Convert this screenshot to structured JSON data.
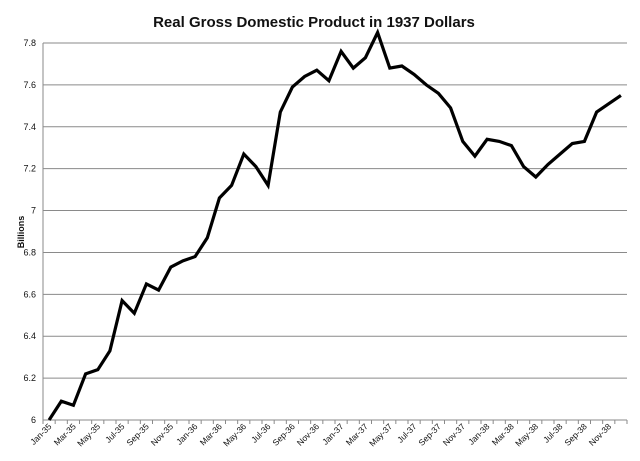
{
  "chart_data": {
    "type": "line",
    "title": "Real Gross Domestic Product in 1937 Dollars",
    "xlabel": "",
    "ylabel": "Billions",
    "ylim": [
      6,
      7.8
    ],
    "yticks": [
      "6",
      "6.2",
      "6.4",
      "6.6",
      "6.8",
      "7",
      "7.2",
      "7.4",
      "7.6",
      "7.8"
    ],
    "x_tick_labels": [
      "Jan-35",
      "Mar-35",
      "May-35",
      "Jul-35",
      "Sep-35",
      "Nov-35",
      "Jan-36",
      "Mar-36",
      "May-36",
      "Jul-36",
      "Sep-36",
      "Nov-36",
      "Jan-37",
      "Mar-37",
      "May-37",
      "Jul-37",
      "Sep-37",
      "Nov-37",
      "Jan-38",
      "Mar-38",
      "May-38",
      "Jul-38",
      "Sep-38",
      "Nov-38"
    ],
    "x": [
      "Jan-35",
      "Feb-35",
      "Mar-35",
      "Apr-35",
      "May-35",
      "Jun-35",
      "Jul-35",
      "Aug-35",
      "Sep-35",
      "Oct-35",
      "Nov-35",
      "Dec-35",
      "Jan-36",
      "Feb-36",
      "Mar-36",
      "Apr-36",
      "May-36",
      "Jun-36",
      "Jul-36",
      "Aug-36",
      "Sep-36",
      "Oct-36",
      "Nov-36",
      "Dec-36",
      "Jan-37",
      "Feb-37",
      "Mar-37",
      "Apr-37",
      "May-37",
      "Jun-37",
      "Jul-37",
      "Aug-37",
      "Sep-37",
      "Oct-37",
      "Nov-37",
      "Dec-37",
      "Jan-38",
      "Feb-38",
      "Mar-38",
      "Apr-38",
      "May-38",
      "Jun-38",
      "Jul-38",
      "Aug-38",
      "Sep-38",
      "Oct-38",
      "Nov-38",
      "Dec-38"
    ],
    "series": [
      {
        "values": [
          6.0,
          6.09,
          6.07,
          6.22,
          6.24,
          6.33,
          6.57,
          6.51,
          6.65,
          6.62,
          6.73,
          6.76,
          6.78,
          6.87,
          7.06,
          7.12,
          7.27,
          7.21,
          7.12,
          7.47,
          7.59,
          7.64,
          7.67,
          7.62,
          7.76,
          7.68,
          7.73,
          7.85,
          7.68,
          7.69,
          7.65,
          7.6,
          7.56,
          7.49,
          7.33,
          7.26,
          7.34,
          7.33,
          7.31,
          7.21,
          7.16,
          7.22,
          7.27,
          7.32,
          7.33,
          7.47,
          7.51,
          7.55
        ],
        "color": "#000000"
      }
    ],
    "grid": true,
    "legend": "none"
  }
}
